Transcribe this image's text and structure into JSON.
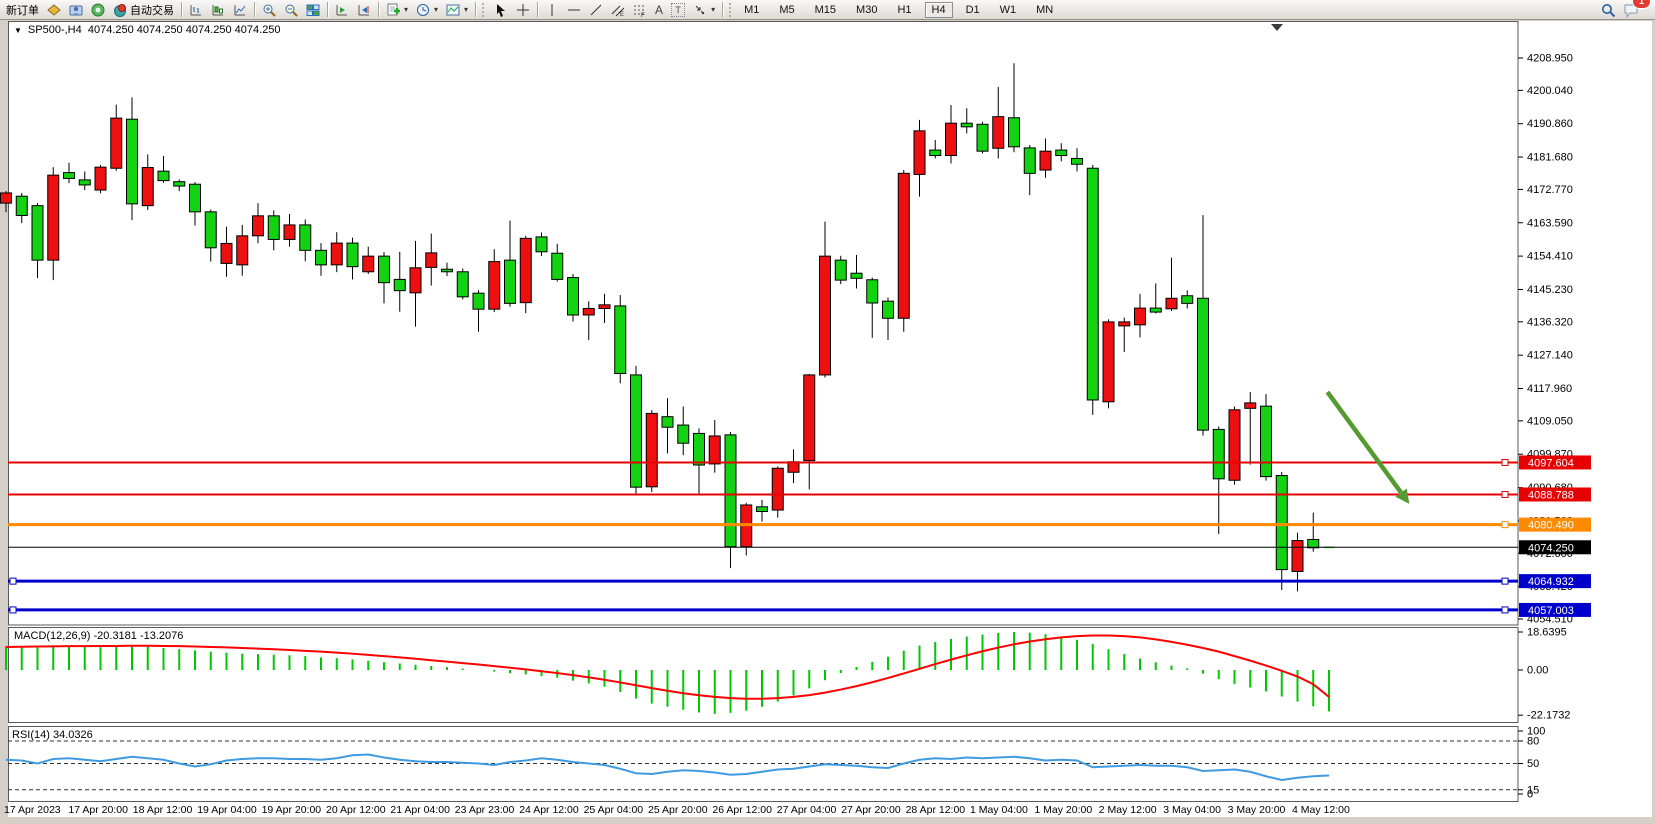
{
  "toolbar": {
    "new_order_label": "新订单",
    "autotrading_label": "自动交易",
    "glyph_text_tool": "A",
    "glyph_label_tool": "T",
    "timeframes": [
      "M1",
      "M5",
      "M15",
      "M30",
      "H1",
      "H4",
      "D1",
      "W1",
      "MN"
    ],
    "active_timeframe": "H4",
    "chat_badge": "1",
    "icon_names": [
      "new-order",
      "gold-bar",
      "terminal",
      "broadcast",
      "autotrading-robot",
      "bar-chart",
      "candlestick-chart",
      "line-chart",
      "zoom-in",
      "zoom-out",
      "tile-windows",
      "indicator-window-add",
      "indicator-window-remove",
      "new-chart",
      "periods-clock",
      "templates",
      "cursor",
      "crosshair",
      "vertical-line",
      "horizontal-line",
      "trend-line",
      "equidistant-channel",
      "fibonacci",
      "text",
      "text-label",
      "arrow-objects",
      "search",
      "chat"
    ]
  },
  "chart": {
    "title_symbol": "SP500-,H4",
    "title_ohlc": "4074.250 4074.250 4074.250 4074.250",
    "price_axis_ticks": [
      "4208.950",
      "4200.040",
      "4190.860",
      "4181.680",
      "4172.770",
      "4163.590",
      "4154.410",
      "4145.230",
      "4136.320",
      "4127.140",
      "4117.960",
      "4109.050",
      "4099.870",
      "4090.680",
      "4081.500",
      "4072.600",
      "4063.420",
      "4054.510"
    ]
  },
  "indicators": {
    "macd_label": "MACD(12,26,9)",
    "macd_values": "-20.3181 -13.2076",
    "macd_axis": [
      "18.6395",
      "0.00",
      "-22.1732"
    ],
    "rsi_label": "RSI(14)",
    "rsi_value": "34.0326",
    "rsi_axis": [
      "100",
      "80",
      "50",
      "15",
      "0"
    ]
  },
  "chart_data": {
    "type": "candlestick",
    "symbol": "SP500-",
    "period": "H4",
    "ylim": [
      4052.9,
      4214.5
    ],
    "colors": {
      "bull": "#ee1010",
      "bear": "#12d212",
      "wick": "#000000",
      "current_bar": "#79dd79",
      "macd_hist": "#00c800",
      "macd_signal": "#ff0000",
      "rsi": "#3f9be0",
      "arrow": "#559a2f",
      "line_red": "#e60000",
      "line_orange": "#ff8a00",
      "line_blue": "#0000cd",
      "line_black": "#000000"
    },
    "x_labels": [
      "17 Apr 2023",
      "17 Apr 20:00",
      "18 Apr 12:00",
      "19 Apr 04:00",
      "19 Apr 20:00",
      "20 Apr 12:00",
      "21 Apr 04:00",
      "23 Apr 23:00",
      "24 Apr 12:00",
      "25 Apr 04:00",
      "25 Apr 20:00",
      "26 Apr 12:00",
      "27 Apr 04:00",
      "27 Apr 20:00",
      "28 Apr 12:00",
      "1 May 04:00",
      "1 May 20:00",
      "2 May 12:00",
      "3 May 04:00",
      "3 May 20:00",
      "4 May 12:00"
    ],
    "candles": [
      [
        4169.0,
        4172.3,
        4166.5,
        4171.8
      ],
      [
        4170.9,
        4171.8,
        4163.5,
        4165.6
      ],
      [
        4168.3,
        4169.0,
        4148.4,
        4153.3
      ],
      [
        4153.3,
        4178.9,
        4147.8,
        4176.7
      ],
      [
        4177.4,
        4180.1,
        4174.5,
        4175.8
      ],
      [
        4175.4,
        4177.7,
        4172.6,
        4174.0
      ],
      [
        4172.6,
        4179.5,
        4171.7,
        4178.9
      ],
      [
        4178.6,
        4196.1,
        4177.9,
        4192.4
      ],
      [
        4192.1,
        4198.1,
        4164.3,
        4168.8
      ],
      [
        4168.3,
        4182.4,
        4167.1,
        4178.8
      ],
      [
        4177.8,
        4182.0,
        4174.6,
        4175.2
      ],
      [
        4174.9,
        4175.5,
        4172.3,
        4173.7
      ],
      [
        4174.2,
        4174.8,
        4162.8,
        4166.6
      ],
      [
        4166.6,
        4167.2,
        4152.9,
        4156.7
      ],
      [
        4152.4,
        4162.5,
        4148.7,
        4157.9
      ],
      [
        4152.0,
        4163.0,
        4149.0,
        4160.0
      ],
      [
        4160.0,
        4169.0,
        4158.0,
        4165.5
      ],
      [
        4165.5,
        4167.0,
        4156.0,
        4159.0
      ],
      [
        4159.0,
        4166.0,
        4157.0,
        4163.0
      ],
      [
        4163.0,
        4164.5,
        4153.0,
        4156.0
      ],
      [
        4156.0,
        4158.0,
        4149.0,
        4152.0
      ],
      [
        4152.0,
        4161.0,
        4150.0,
        4158.0
      ],
      [
        4158.0,
        4159.5,
        4148.0,
        4151.5
      ],
      [
        4150.1,
        4157.0,
        4149.5,
        4154.4
      ],
      [
        4154.4,
        4155.5,
        4141.4,
        4147.1
      ],
      [
        4148.0,
        4155.6,
        4139.1,
        4144.9
      ],
      [
        4144.3,
        4158.6,
        4135.0,
        4151.2
      ],
      [
        4151.3,
        4160.6,
        4146.3,
        4155.3
      ],
      [
        4150.8,
        4152.6,
        4148.9,
        4150.1
      ],
      [
        4150.1,
        4151.0,
        4142.5,
        4143.2
      ],
      [
        4144.2,
        4145.0,
        4133.6,
        4139.8
      ],
      [
        4139.8,
        4156.3,
        4139.0,
        4152.9
      ],
      [
        4153.3,
        4164.2,
        4140.5,
        4141.4
      ],
      [
        4141.6,
        4160.0,
        4138.7,
        4159.3
      ],
      [
        4159.7,
        4160.9,
        4154.4,
        4155.6
      ],
      [
        4155.2,
        4157.8,
        4147.4,
        4148.0
      ],
      [
        4148.5,
        4149.5,
        4136.4,
        4138.2
      ],
      [
        4138.2,
        4142.0,
        4131.3,
        4140.0
      ],
      [
        4140.0,
        4144.0,
        4136.0,
        4141.0
      ],
      [
        4140.7,
        4143.7,
        4119.4,
        4122.1
      ],
      [
        4121.7,
        4124.2,
        4089.1,
        4090.8
      ],
      [
        4090.9,
        4112.0,
        4089.5,
        4111.1
      ],
      [
        4110.2,
        4115.3,
        4100.1,
        4107.3
      ],
      [
        4107.9,
        4113.0,
        4099.6,
        4102.9
      ],
      [
        4105.6,
        4107.0,
        4088.6,
        4096.9
      ],
      [
        4097.2,
        4109.3,
        4094.8,
        4104.9
      ],
      [
        4105.2,
        4106.0,
        4068.5,
        4074.4
      ],
      [
        4074.4,
        4086.5,
        4072.0,
        4085.9
      ],
      [
        4085.4,
        4087.3,
        4081.3,
        4084.1
      ],
      [
        4084.5,
        4096.5,
        4082.4,
        4096.0
      ],
      [
        4094.9,
        4101.2,
        4091.9,
        4097.8
      ],
      [
        4098.1,
        4122.0,
        4090.2,
        4121.7
      ],
      [
        4121.7,
        4163.9,
        4121.0,
        4154.4
      ],
      [
        4153.3,
        4154.5,
        4146.7,
        4147.8
      ],
      [
        4149.7,
        4154.7,
        4145.5,
        4148.3
      ],
      [
        4147.9,
        4148.5,
        4131.9,
        4141.5
      ],
      [
        4142.0,
        4143.0,
        4131.3,
        4137.3
      ],
      [
        4137.3,
        4178.1,
        4133.6,
        4177.2
      ],
      [
        4176.9,
        4191.9,
        4170.8,
        4188.9
      ],
      [
        4183.6,
        4186.4,
        4181.3,
        4182.1
      ],
      [
        4182.1,
        4196.0,
        4179.9,
        4191.0
      ],
      [
        4191.0,
        4195.1,
        4188.2,
        4190.0
      ],
      [
        4190.7,
        4191.4,
        4182.7,
        4183.3
      ],
      [
        4184.1,
        4201.0,
        4181.3,
        4192.8
      ],
      [
        4192.5,
        4207.5,
        4183.0,
        4184.5
      ],
      [
        4184.2,
        4185.0,
        4171.2,
        4177.2
      ],
      [
        4178.1,
        4186.8,
        4176.0,
        4183.3
      ],
      [
        4183.6,
        4185.5,
        4180.5,
        4182.1
      ],
      [
        4181.3,
        4184.1,
        4177.7,
        4179.7
      ],
      [
        4178.6,
        4179.5,
        4110.7,
        4114.8
      ],
      [
        4114.3,
        4137.0,
        4112.5,
        4136.3
      ],
      [
        4135.2,
        4137.5,
        4128.0,
        4136.3
      ],
      [
        4135.5,
        4144.0,
        4132.0,
        4140.1
      ],
      [
        4140.1,
        4146.9,
        4138.6,
        4139.0
      ],
      [
        4139.9,
        4154.0,
        4139.3,
        4142.8
      ],
      [
        4143.5,
        4145.0,
        4140.0,
        4141.4
      ],
      [
        4142.8,
        4165.7,
        4105.0,
        4106.5
      ],
      [
        4106.7,
        4107.5,
        4077.9,
        4093.1
      ],
      [
        4092.7,
        4113.0,
        4091.5,
        4112.1
      ],
      [
        4112.5,
        4117.0,
        4097.0,
        4114.0
      ],
      [
        4113.1,
        4116.4,
        4092.6,
        4093.7
      ],
      [
        4094.0,
        4095.0,
        4062.5,
        4068.1
      ],
      [
        4067.6,
        4078.3,
        4062.1,
        4076.1
      ],
      [
        4076.4,
        4083.8,
        4073.0,
        4074.1
      ],
      [
        4074.25,
        4074.25,
        4074.25,
        4074.25
      ]
    ],
    "horizontal_lines": [
      {
        "price": 4097.604,
        "label": "4097.604",
        "color": "#e60000",
        "width": 2,
        "handle_right": true,
        "handle_left": false
      },
      {
        "price": 4088.788,
        "label": "4088.788",
        "color": "#e60000",
        "width": 2,
        "handle_right": true,
        "handle_left": false
      },
      {
        "price": 4080.49,
        "label": "4080.490",
        "color": "#ff8a00",
        "width": 3,
        "handle_right": true,
        "handle_left": false
      },
      {
        "price": 4074.25,
        "label": "4074.250",
        "color": "#000000",
        "width": 1,
        "handle_right": false,
        "handle_left": false
      },
      {
        "price": 4064.932,
        "label": "4064.932",
        "color": "#0000cd",
        "width": 3,
        "handle_right": true,
        "handle_left": true
      },
      {
        "price": 4057.003,
        "label": "4057.003",
        "color": "#0000cd",
        "width": 3,
        "handle_right": true,
        "handle_left": true
      }
    ],
    "macd": {
      "params": "12,26,9",
      "shown_values": [
        -20.3181,
        -13.2076
      ],
      "range": [
        -22.1732,
        18.6395
      ],
      "histogram": [
        11.5,
        11.8,
        12.0,
        12.2,
        11.8,
        11.5,
        11.2,
        11.6,
        12.0,
        11.5,
        10.8,
        10.2,
        9.6,
        9.0,
        8.5,
        8.0,
        7.8,
        7.5,
        7.2,
        6.8,
        6.2,
        5.8,
        5.2,
        4.5,
        3.8,
        3.2,
        2.6,
        2.0,
        1.4,
        0.7,
        0.0,
        -0.8,
        -1.6,
        -2.2,
        -3.0,
        -3.8,
        -5.2,
        -6.6,
        -8.2,
        -10.8,
        -14.0,
        -16.5,
        -18.0,
        -19.5,
        -20.8,
        -21.5,
        -21.0,
        -20.0,
        -18.0,
        -15.5,
        -12.5,
        -9.0,
        -5.0,
        -1.5,
        1.5,
        4.0,
        6.5,
        9.5,
        12.0,
        13.8,
        15.2,
        16.4,
        17.4,
        18.2,
        18.6,
        18.3,
        17.6,
        16.4,
        14.8,
        12.8,
        10.2,
        7.8,
        5.6,
        3.8,
        2.2,
        0.8,
        -1.8,
        -4.5,
        -6.8,
        -8.6,
        -10.5,
        -13.0,
        -15.5,
        -17.8,
        -20.3
      ],
      "signal": [
        11.3,
        11.4,
        11.5,
        11.6,
        11.7,
        11.7,
        11.8,
        11.8,
        11.9,
        11.9,
        11.8,
        11.7,
        11.5,
        11.3,
        11.1,
        10.8,
        10.5,
        10.2,
        9.8,
        9.4,
        9.0,
        8.5,
        8.0,
        7.4,
        6.8,
        6.2,
        5.5,
        4.8,
        4.1,
        3.4,
        2.7,
        1.9,
        1.1,
        0.3,
        -0.6,
        -1.5,
        -2.5,
        -3.6,
        -4.8,
        -6.1,
        -7.5,
        -8.9,
        -10.2,
        -11.4,
        -12.4,
        -13.2,
        -13.8,
        -14.1,
        -14.1,
        -13.8,
        -13.2,
        -12.3,
        -11.1,
        -9.6,
        -7.9,
        -6.0,
        -3.9,
        -1.7,
        0.6,
        2.9,
        5.1,
        7.2,
        9.2,
        11.0,
        12.6,
        14.0,
        15.1,
        16.0,
        16.6,
        16.9,
        16.9,
        16.6,
        16.0,
        15.0,
        13.8,
        12.4,
        10.8,
        9.0,
        6.8,
        4.6,
        2.2,
        -0.4,
        -3.2,
        -7.0,
        -13.2
      ]
    },
    "rsi": {
      "period": 14,
      "shown_value": 34.0326,
      "levels": [
        80,
        50,
        15
      ],
      "range": [
        0,
        100
      ],
      "values": [
        55,
        54,
        50,
        56,
        57,
        55,
        53,
        56,
        59,
        57,
        55,
        50,
        46,
        49,
        54,
        56,
        57,
        57,
        56,
        56,
        55,
        57,
        61,
        62,
        58,
        55,
        53,
        52,
        52,
        51,
        50,
        48,
        52,
        54,
        57,
        55,
        52,
        50,
        48,
        43,
        37,
        36,
        39,
        41,
        40,
        38,
        35,
        36,
        39,
        42,
        43,
        46,
        49,
        48,
        47,
        45,
        44,
        50,
        55,
        57,
        56,
        58,
        57,
        58,
        59,
        57,
        54,
        55,
        54,
        45,
        46,
        47,
        48,
        47,
        47,
        45,
        40,
        41,
        42,
        39,
        33,
        28,
        31,
        33,
        34
      ]
    },
    "annotations": [
      {
        "type": "arrow",
        "color": "#559a2f",
        "from": {
          "bar": 83.9,
          "price": 4117.0
        },
        "to": {
          "bar": 89.1,
          "price": 4086.2
        }
      }
    ]
  }
}
